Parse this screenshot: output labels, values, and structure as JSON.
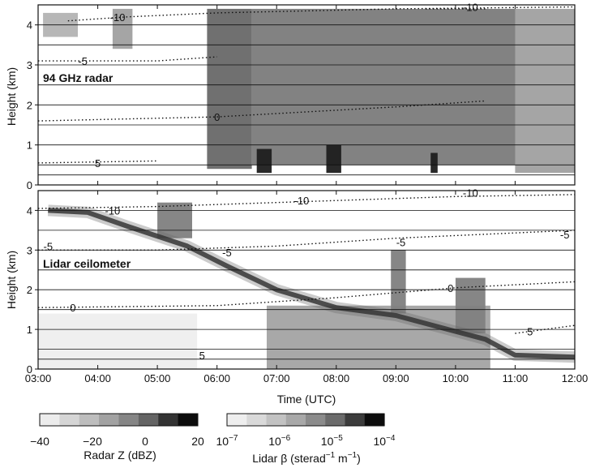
{
  "chart_data": [
    {
      "type": "heatmap",
      "title": "94 GHz radar",
      "ylabel": "Height (km)",
      "xlim": [
        "03:00",
        "12:00"
      ],
      "ylim": [
        0,
        4.5
      ],
      "yticks": [
        "0",
        "1",
        "2",
        "3",
        "4"
      ],
      "grid": true,
      "gridlines_km": [
        0.25,
        0.5,
        1.0,
        1.5,
        2.0,
        2.5,
        3.0,
        3.5,
        4.0
      ],
      "colorbar": "Radar Z (dBZ)",
      "echo_regions": [
        {
          "start": "03:05",
          "end": "03:40",
          "bottom_km": 3.7,
          "top_km": 4.3,
          "z_dbz": -25
        },
        {
          "start": "04:15",
          "end": "04:35",
          "bottom_km": 3.4,
          "top_km": 4.4,
          "z_dbz": -20
        },
        {
          "start": "05:50",
          "end": "06:35",
          "bottom_km": 0.4,
          "top_km": 4.4,
          "z_dbz": -5
        },
        {
          "start": "06:35",
          "end": "11:00",
          "bottom_km": 0.5,
          "top_km": 4.4,
          "z_dbz": -10
        },
        {
          "start": "11:00",
          "end": "12:00",
          "bottom_km": 0.3,
          "top_km": 4.4,
          "z_dbz": -20
        },
        {
          "start": "06:40",
          "end": "06:55",
          "bottom_km": 0.3,
          "top_km": 0.9,
          "z_dbz": 15
        },
        {
          "start": "07:50",
          "end": "08:05",
          "bottom_km": 0.3,
          "top_km": 1.0,
          "z_dbz": 15
        },
        {
          "start": "09:35",
          "end": "09:42",
          "bottom_km": 0.3,
          "top_km": 0.8,
          "z_dbz": 15
        }
      ],
      "isotherms": [
        {
          "label": "-10",
          "points": [
            [
              "03:30",
              4.1
            ],
            [
              "04:30",
              4.2
            ],
            [
              "06:00",
              4.3
            ],
            [
              "09:00",
              4.4
            ],
            [
              "12:00",
              4.45
            ]
          ],
          "label_at": [
            "04:20",
            4.2
          ]
        },
        {
          "label": "-10",
          "points": [
            [
              "09:30",
              4.4
            ],
            [
              "10:30",
              4.4
            ]
          ],
          "label_at": [
            "10:15",
            4.45
          ]
        },
        {
          "label": "-5",
          "points": [
            [
              "03:00",
              3.1
            ],
            [
              "05:00",
              3.1
            ],
            [
              "06:00",
              3.2
            ]
          ],
          "label_at": [
            "03:45",
            3.1
          ]
        },
        {
          "label": "0",
          "points": [
            [
              "03:00",
              1.6
            ],
            [
              "06:00",
              1.7
            ],
            [
              "09:00",
              1.95
            ],
            [
              "10:30",
              2.1
            ]
          ],
          "label_at": [
            "06:00",
            1.7
          ]
        },
        {
          "label": "5",
          "points": [
            [
              "03:00",
              0.55
            ],
            [
              "05:00",
              0.6
            ]
          ],
          "label_at": [
            "04:00",
            0.55
          ]
        }
      ]
    },
    {
      "type": "heatmap",
      "title": "Lidar ceilometer",
      "xlabel": "Time (UTC)",
      "ylabel": "Height (km)",
      "xticks": [
        "03:00",
        "04:00",
        "05:00",
        "06:00",
        "07:00",
        "08:00",
        "09:00",
        "10:00",
        "11:00",
        "12:00"
      ],
      "yticks": [
        "0",
        "1",
        "2",
        "3",
        "4"
      ],
      "ylim": [
        0,
        4.5
      ],
      "grid": true,
      "gridlines_km": [
        0.25,
        0.5,
        1.0,
        1.5,
        2.0,
        2.5,
        3.0,
        3.5,
        4.0
      ],
      "colorbar": "Lidar β (sterad⁻¹ m⁻¹)",
      "cloud_base_km": [
        [
          "03:10",
          4.0
        ],
        [
          "03:50",
          3.95
        ],
        [
          "04:30",
          3.6
        ],
        [
          "05:30",
          3.1
        ],
        [
          "06:10",
          2.6
        ],
        [
          "07:00",
          2.0
        ],
        [
          "08:00",
          1.55
        ],
        [
          "09:00",
          1.35
        ],
        [
          "10:00",
          0.95
        ],
        [
          "10:30",
          0.75
        ],
        [
          "11:00",
          0.35
        ],
        [
          "12:00",
          0.3
        ]
      ],
      "backscatter_regions": [
        {
          "start": "03:00",
          "end": "05:40",
          "bottom_km": 0.0,
          "top_km": 1.4,
          "beta": 1e-07
        },
        {
          "start": "06:50",
          "end": "10:35",
          "bottom_km": 0.0,
          "top_km": 1.6,
          "beta": 1e-06
        },
        {
          "start": "08:55",
          "end": "09:10",
          "bottom_km": 1.4,
          "top_km": 3.0,
          "beta": 3e-06
        },
        {
          "start": "10:00",
          "end": "10:30",
          "bottom_km": 0.9,
          "top_km": 2.3,
          "beta": 3e-06
        },
        {
          "start": "05:00",
          "end": "05:35",
          "bottom_km": 3.3,
          "top_km": 4.2,
          "beta": 3e-06
        }
      ],
      "isotherms": [
        {
          "label": "-10",
          "points": [
            [
              "03:00",
              4.05
            ],
            [
              "05:00",
              4.1
            ],
            [
              "07:00",
              4.2
            ],
            [
              "10:00",
              4.35
            ],
            [
              "12:00",
              4.4
            ]
          ],
          "label_at": [
            "07:25",
            4.25
          ]
        },
        {
          "label": "-10",
          "points": [
            [
              "03:00",
              4.0
            ]
          ],
          "label_at": [
            "04:15",
            4.0
          ]
        },
        {
          "label": "-10",
          "points": [
            [
              "10:00",
              4.4
            ]
          ],
          "label_at": [
            "10:15",
            4.45
          ]
        },
        {
          "label": "-5",
          "points": [
            [
              "03:00",
              3.0
            ],
            [
              "05:00",
              3.0
            ],
            [
              "07:00",
              3.1
            ],
            [
              "09:00",
              3.3
            ],
            [
              "12:00",
              3.5
            ]
          ],
          "label_at": [
            "06:10",
            2.95
          ]
        },
        {
          "label": "-5",
          "points": [],
          "label_at": [
            "03:10",
            3.1
          ]
        },
        {
          "label": "-5",
          "points": [],
          "label_at": [
            "09:05",
            3.2
          ]
        },
        {
          "label": "-5",
          "points": [],
          "label_at": [
            "11:50",
            3.4
          ]
        },
        {
          "label": "0",
          "points": [
            [
              "03:00",
              1.55
            ],
            [
              "06:00",
              1.6
            ],
            [
              "08:00",
              1.8
            ],
            [
              "10:00",
              2.05
            ],
            [
              "12:00",
              2.2
            ]
          ],
          "label_at": [
            "09:55",
            2.05
          ]
        },
        {
          "label": "0",
          "points": [],
          "label_at": [
            "03:35",
            1.55
          ]
        },
        {
          "label": "5",
          "points": [
            [
              "11:00",
              0.9
            ],
            [
              "12:00",
              1.1
            ]
          ],
          "label_at": [
            "11:15",
            0.95
          ]
        },
        {
          "label": "5",
          "points": [],
          "label_at": [
            "05:45",
            0.35
          ]
        }
      ]
    }
  ],
  "colorbars": [
    {
      "label_prefix": "Radar Z (dBZ)",
      "ticks": [
        "−40",
        "−20",
        "0",
        "20"
      ],
      "colors": [
        "#ececec",
        "#d5d5d5",
        "#bdbdbd",
        "#a2a2a2",
        "#858585",
        "#646464",
        "#333333",
        "#0c0c0c"
      ]
    },
    {
      "label_prefix": "Lidar β (sterad",
      "label_sup1": "−1",
      "label_mid": " m",
      "label_sup2": "−1",
      "label_suffix": ")",
      "ticks": [
        {
          "base": "10",
          "exp": "−7"
        },
        {
          "base": "10",
          "exp": "−6"
        },
        {
          "base": "10",
          "exp": "−5"
        },
        {
          "base": "10",
          "exp": "−4"
        }
      ],
      "colors": [
        "#eeeeee",
        "#d9d9d9",
        "#c2c2c2",
        "#a8a8a8",
        "#8b8b8b",
        "#6b6b6b",
        "#3c3c3c",
        "#0d0d0d"
      ]
    }
  ]
}
